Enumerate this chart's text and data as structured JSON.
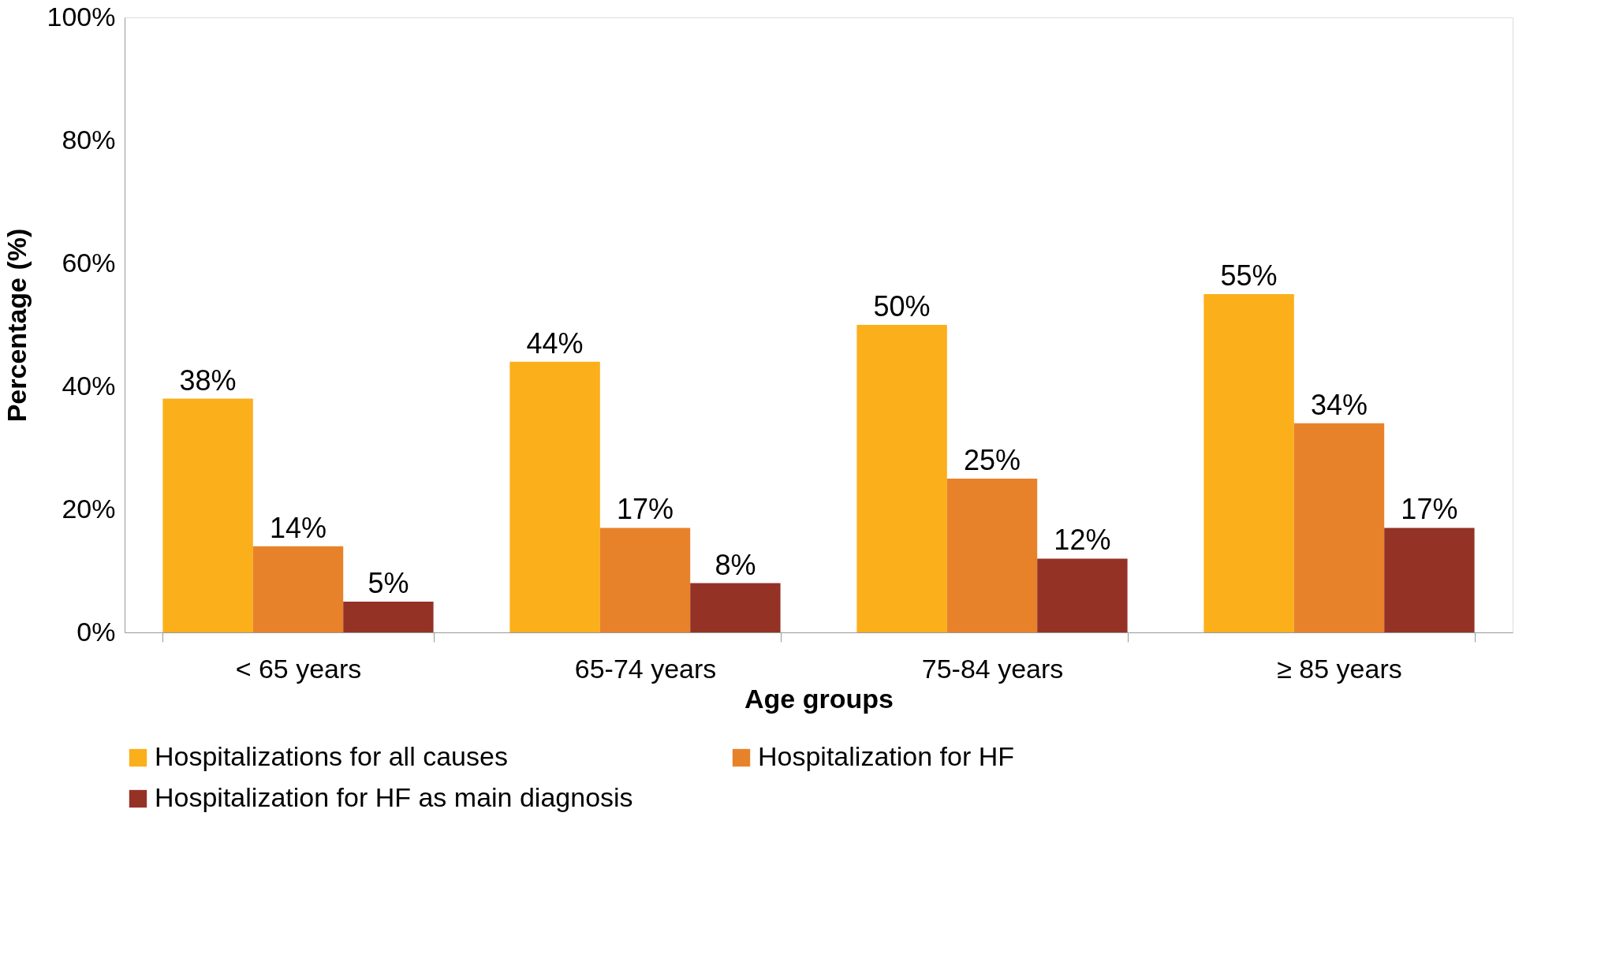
{
  "chart_data": {
    "type": "bar",
    "xlabel": "Age groups",
    "ylabel": "Percentage (%)",
    "categories": [
      "< 65 years",
      "65-74 years",
      "75-84 years",
      "≥ 85 years"
    ],
    "series": [
      {
        "name": "Hospitalizations for all causes",
        "color": "#fbaf1a",
        "values": [
          38,
          44,
          50,
          55
        ],
        "value_labels": [
          "38%",
          "44%",
          "50%",
          "55%"
        ]
      },
      {
        "name": "Hospitalization for HF",
        "color": "#e8822a",
        "values": [
          14,
          17,
          25,
          34
        ],
        "value_labels": [
          "14%",
          "17%",
          "25%",
          "34%"
        ]
      },
      {
        "name": "Hospitalization for HF as main diagnosis",
        "color": "#943226",
        "values": [
          5,
          8,
          12,
          17
        ],
        "value_labels": [
          "5%",
          "8%",
          "12%",
          "17%"
        ]
      }
    ],
    "ylim": [
      0,
      100
    ],
    "yticks": [
      {
        "value": 0,
        "label": "0%"
      },
      {
        "value": 20,
        "label": "20%"
      },
      {
        "value": 40,
        "label": "40%"
      },
      {
        "value": 60,
        "label": "60%"
      },
      {
        "value": 80,
        "label": "80%"
      },
      {
        "value": 100,
        "label": "100%"
      }
    ],
    "grid": false,
    "legend": "bottom"
  }
}
